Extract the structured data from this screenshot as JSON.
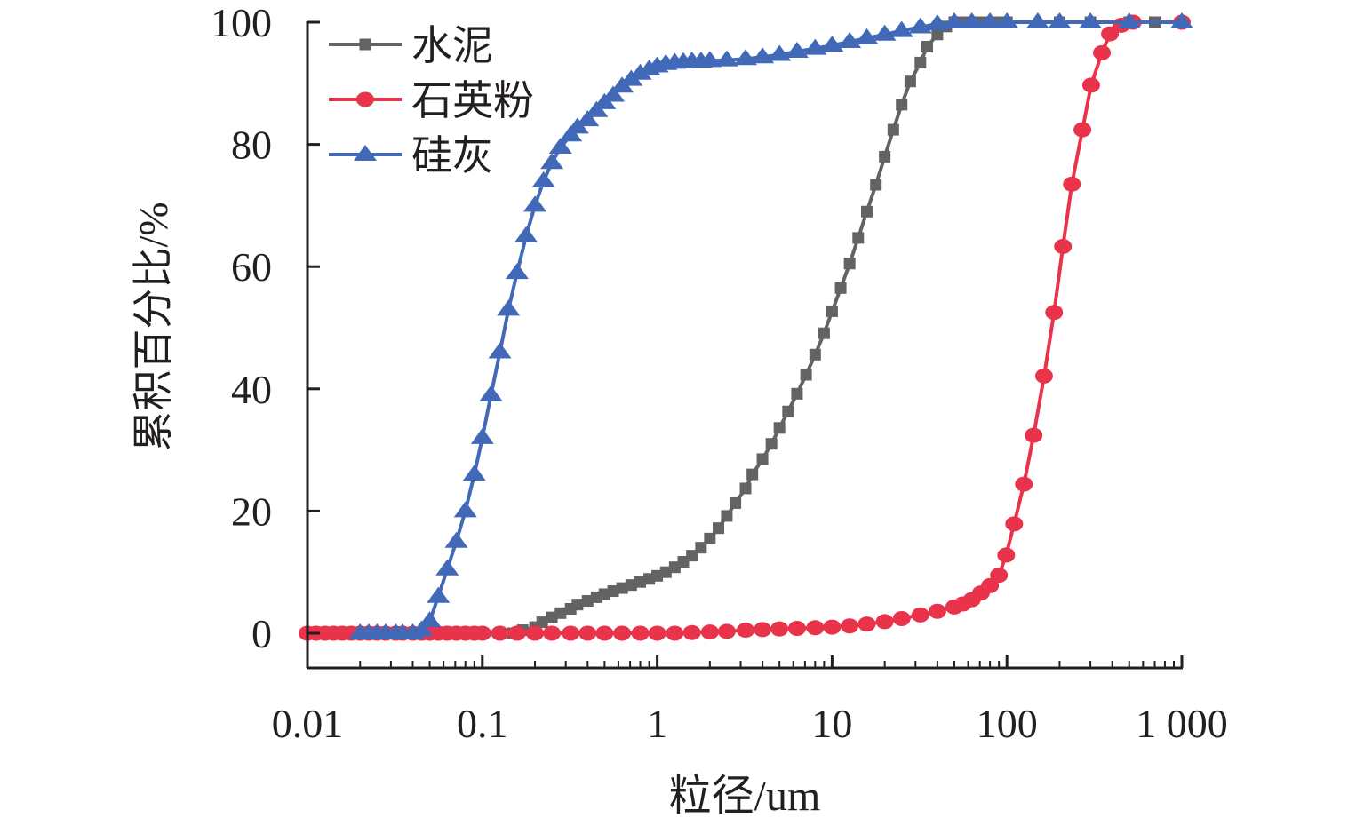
{
  "chart_data": {
    "type": "line",
    "title": "",
    "xlabel": "粒径/um",
    "ylabel": "累积百分比/%",
    "xscale": "log",
    "xlim": [
      0.01,
      1000
    ],
    "ylim": [
      0,
      100
    ],
    "xticks": [
      0.01,
      0.1,
      1,
      10,
      100,
      1000
    ],
    "xtick_labels": [
      "0.01",
      "0.1",
      "1",
      "10",
      "100",
      "1 000"
    ],
    "yticks": [
      0,
      20,
      40,
      60,
      80,
      100
    ],
    "ytick_labels": [
      "0",
      "20",
      "40",
      "60",
      "80",
      "100"
    ],
    "grid": false,
    "legend_position": "top-left",
    "series": [
      {
        "name": "水泥",
        "color": "#636363",
        "marker": "square",
        "x": [
          0.15,
          0.17,
          0.2,
          0.22,
          0.25,
          0.28,
          0.32,
          0.35,
          0.4,
          0.45,
          0.5,
          0.56,
          0.63,
          0.71,
          0.8,
          0.9,
          1,
          1.12,
          1.26,
          1.41,
          1.58,
          1.78,
          2,
          2.24,
          2.5,
          2.8,
          3.2,
          3.5,
          4,
          4.5,
          5,
          5.6,
          6.3,
          7.1,
          8,
          9,
          10,
          11.2,
          12.6,
          14.1,
          15.8,
          17.8,
          20,
          22.4,
          25,
          28,
          32,
          35,
          40,
          45,
          50,
          56,
          63,
          71,
          80,
          90,
          100,
          200,
          300,
          500,
          700,
          1000
        ],
        "y": [
          0,
          0.5,
          1,
          1.8,
          2.6,
          3.3,
          4,
          4.7,
          5.3,
          5.9,
          6.4,
          6.9,
          7.4,
          7.9,
          8.4,
          8.9,
          9.4,
          10,
          10.8,
          11.7,
          12.7,
          14,
          15.5,
          17.2,
          19.2,
          21.3,
          23.7,
          26,
          28.5,
          31,
          33.6,
          36.3,
          39.2,
          42.3,
          45.6,
          49.1,
          52.7,
          56.5,
          60.5,
          64.7,
          69,
          73.4,
          78,
          82.4,
          86.5,
          90.3,
          93.4,
          96,
          98,
          99.3,
          100,
          100,
          100,
          100,
          100,
          100,
          100,
          100,
          100,
          100,
          100,
          100
        ]
      },
      {
        "name": "石英粉",
        "color": "#e8334a",
        "marker": "circle",
        "x": [
          0.01,
          0.0112,
          0.0126,
          0.0141,
          0.0158,
          0.0178,
          0.02,
          0.0224,
          0.025,
          0.028,
          0.032,
          0.035,
          0.04,
          0.045,
          0.05,
          0.056,
          0.063,
          0.071,
          0.08,
          0.09,
          0.1,
          0.126,
          0.158,
          0.2,
          0.25,
          0.32,
          0.4,
          0.5,
          0.63,
          0.8,
          1,
          1.26,
          1.58,
          2,
          2.5,
          3.2,
          4,
          5,
          6.3,
          8,
          10,
          12.6,
          15.8,
          20,
          25,
          32,
          40,
          50,
          56,
          63,
          71,
          80,
          90,
          99,
          110,
          125,
          142,
          163,
          186,
          209,
          235,
          270,
          303,
          349,
          388,
          450,
          525,
          1000
        ],
        "y": [
          0,
          0,
          0,
          0,
          0,
          0,
          0,
          0,
          0,
          0,
          0,
          0,
          0,
          0,
          0,
          0,
          0,
          0,
          0,
          0,
          0,
          0,
          0,
          0,
          0,
          0,
          0,
          0,
          0,
          0,
          0,
          0,
          0.1,
          0.2,
          0.3,
          0.5,
          0.6,
          0.7,
          0.8,
          0.9,
          1,
          1.2,
          1.5,
          1.9,
          2.4,
          3,
          3.6,
          4.3,
          4.8,
          5.5,
          6.6,
          7.8,
          9.5,
          12.8,
          17.9,
          24.4,
          32.4,
          42.1,
          52.5,
          63.3,
          73.5,
          82.4,
          89.7,
          95,
          98.1,
          99.5,
          100,
          100
        ]
      },
      {
        "name": "硅灰",
        "color": "#4169b8",
        "marker": "triangle",
        "x": [
          0.02,
          0.0224,
          0.025,
          0.028,
          0.032,
          0.035,
          0.04,
          0.045,
          0.05,
          0.056,
          0.063,
          0.071,
          0.08,
          0.09,
          0.1,
          0.112,
          0.126,
          0.141,
          0.158,
          0.178,
          0.2,
          0.224,
          0.25,
          0.28,
          0.32,
          0.35,
          0.4,
          0.45,
          0.5,
          0.56,
          0.63,
          0.71,
          0.8,
          0.9,
          1,
          1.12,
          1.26,
          1.41,
          1.58,
          1.78,
          2,
          2.5,
          3.2,
          4,
          5,
          6.3,
          8,
          10,
          12.6,
          15.8,
          20,
          25,
          32,
          40,
          50,
          63,
          80,
          100,
          150,
          200,
          300,
          500,
          1000
        ],
        "y": [
          0,
          0,
          0,
          0,
          0,
          0,
          0,
          0.5,
          2,
          6,
          10.5,
          15,
          20,
          26,
          32,
          39,
          46,
          53,
          59,
          65,
          70,
          74,
          77,
          79.5,
          81.5,
          82.8,
          84,
          85.5,
          86.8,
          88,
          89.5,
          90.6,
          91.6,
          92.3,
          92.8,
          93.2,
          93.4,
          93.5,
          93.6,
          93.6,
          93.7,
          93.8,
          94,
          94.3,
          94.7,
          95.2,
          95.7,
          96.2,
          96.8,
          97.4,
          98,
          98.6,
          99.2,
          99.7,
          100,
          100,
          100,
          100,
          100,
          100,
          100,
          100,
          100
        ]
      }
    ]
  }
}
